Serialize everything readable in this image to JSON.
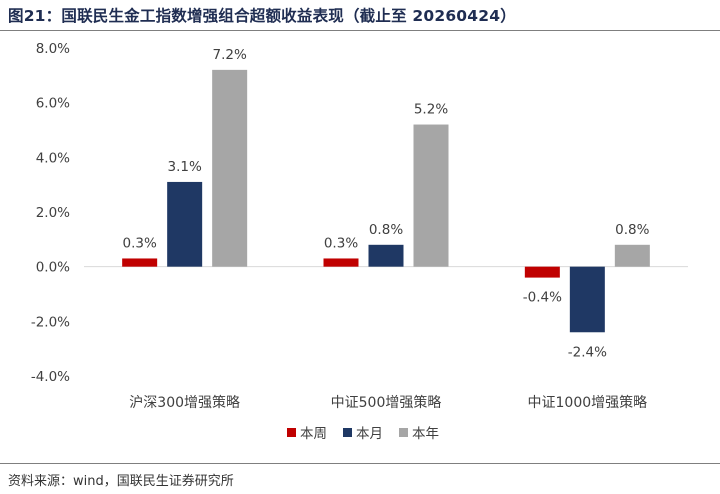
{
  "figure_title": "图21：国联民生金工指数增强组合超额收益表现（截止至 20260424）",
  "source": "资料来源：wind，国联民生证券研究所",
  "colors": {
    "title": "#1f2d52",
    "week": "#c00000",
    "month": "#1f3864",
    "year": "#a6a6a6"
  },
  "chart_data": {
    "type": "bar",
    "title": "",
    "xlabel": "",
    "ylabel": "",
    "categories": [
      "沪深300增强策略",
      "中证500增强策略",
      "中证1000增强策略"
    ],
    "series": [
      {
        "name": "本周",
        "values": [
          0.3,
          0.3,
          -0.4
        ],
        "labels": [
          "0.3%",
          "0.3%",
          "-0.4%"
        ],
        "color": "#c00000"
      },
      {
        "name": "本月",
        "values": [
          3.1,
          0.8,
          -2.4
        ],
        "labels": [
          "3.1%",
          "0.8%",
          "-2.4%"
        ],
        "color": "#1f3864"
      },
      {
        "name": "本年",
        "values": [
          7.2,
          5.2,
          0.8
        ],
        "labels": [
          "7.2%",
          "5.2%",
          "0.8%"
        ],
        "color": "#a6a6a6"
      }
    ],
    "ylim": [
      -4,
      8
    ],
    "yticks": [
      -4,
      -2,
      0,
      2,
      4,
      6,
      8
    ],
    "ytick_labels": [
      "-4.0%",
      "-2.0%",
      "0.0%",
      "2.0%",
      "4.0%",
      "6.0%",
      "8.0%"
    ],
    "grid": false,
    "legend_position": "bottom"
  }
}
